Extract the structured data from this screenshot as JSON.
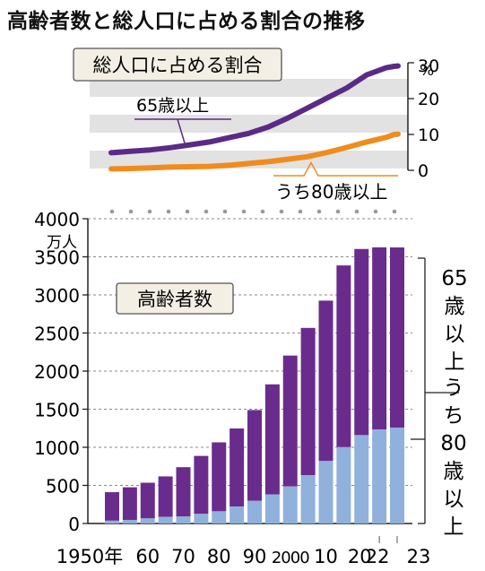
{
  "title": "高齢者数と総人口に占める割合の推移",
  "colors": {
    "purple": "#5b2a86",
    "bar_purple": "#6a2c8c",
    "bar_blue": "#8fb1dc",
    "orange": "#f08c1e",
    "band": "#e2e2e2",
    "box_bg": "#f3efe4"
  },
  "chart_data": [
    {
      "type": "line",
      "title": "総人口に占める割合",
      "unit": "%",
      "y_ticks": [
        "30",
        "20",
        "10",
        "0"
      ],
      "ylim": [
        0,
        30
      ],
      "x": [
        1950,
        1955,
        1960,
        1965,
        1970,
        1975,
        1980,
        1985,
        1990,
        1995,
        2000,
        2005,
        2010,
        2015,
        2020,
        2022,
        2023
      ],
      "series": [
        {
          "name": "65歳以上",
          "values": [
            4.9,
            5.3,
            5.7,
            6.3,
            7.1,
            7.9,
            9.1,
            10.3,
            12.1,
            14.6,
            17.4,
            20.2,
            23.0,
            26.6,
            28.6,
            29.0,
            29.1
          ]
        },
        {
          "name": "うち80歳以上",
          "values": [
            0.4,
            0.5,
            0.7,
            0.9,
            1.0,
            1.1,
            1.4,
            1.9,
            2.4,
            3.1,
            3.8,
            5.0,
            6.4,
            7.9,
            9.2,
            10.0,
            10.1
          ]
        }
      ]
    },
    {
      "type": "bar",
      "title": "高齢者数",
      "unit": "万人",
      "y_ticks": [
        "4000",
        "3500",
        "3000",
        "2500",
        "2000",
        "1500",
        "1000",
        "500",
        "0"
      ],
      "ylim": [
        0,
        4000
      ],
      "x_labels": [
        "1950年",
        "60",
        "70",
        "80",
        "90",
        "2000",
        "10",
        "20",
        "22",
        "23"
      ],
      "categories": [
        1950,
        1955,
        1960,
        1965,
        1970,
        1975,
        1980,
        1985,
        1990,
        1995,
        2000,
        2005,
        2010,
        2015,
        2020,
        2022,
        2023
      ],
      "series": [
        {
          "name": "65歳以上",
          "values": [
            411,
            475,
            535,
            618,
            739,
            887,
            1065,
            1247,
            1489,
            1826,
            2204,
            2567,
            2925,
            3387,
            3603,
            3624,
            3623
          ]
        },
        {
          "name": "うち80歳以上",
          "values": [
            37,
            47,
            67,
            86,
            91,
            126,
            160,
            222,
            297,
            382,
            486,
            635,
            820,
            1002,
            1160,
            1235,
            1259
          ]
        }
      ],
      "side_labels": {
        "age65": "65歳以上",
        "age80": "うち80歳以上"
      }
    }
  ]
}
